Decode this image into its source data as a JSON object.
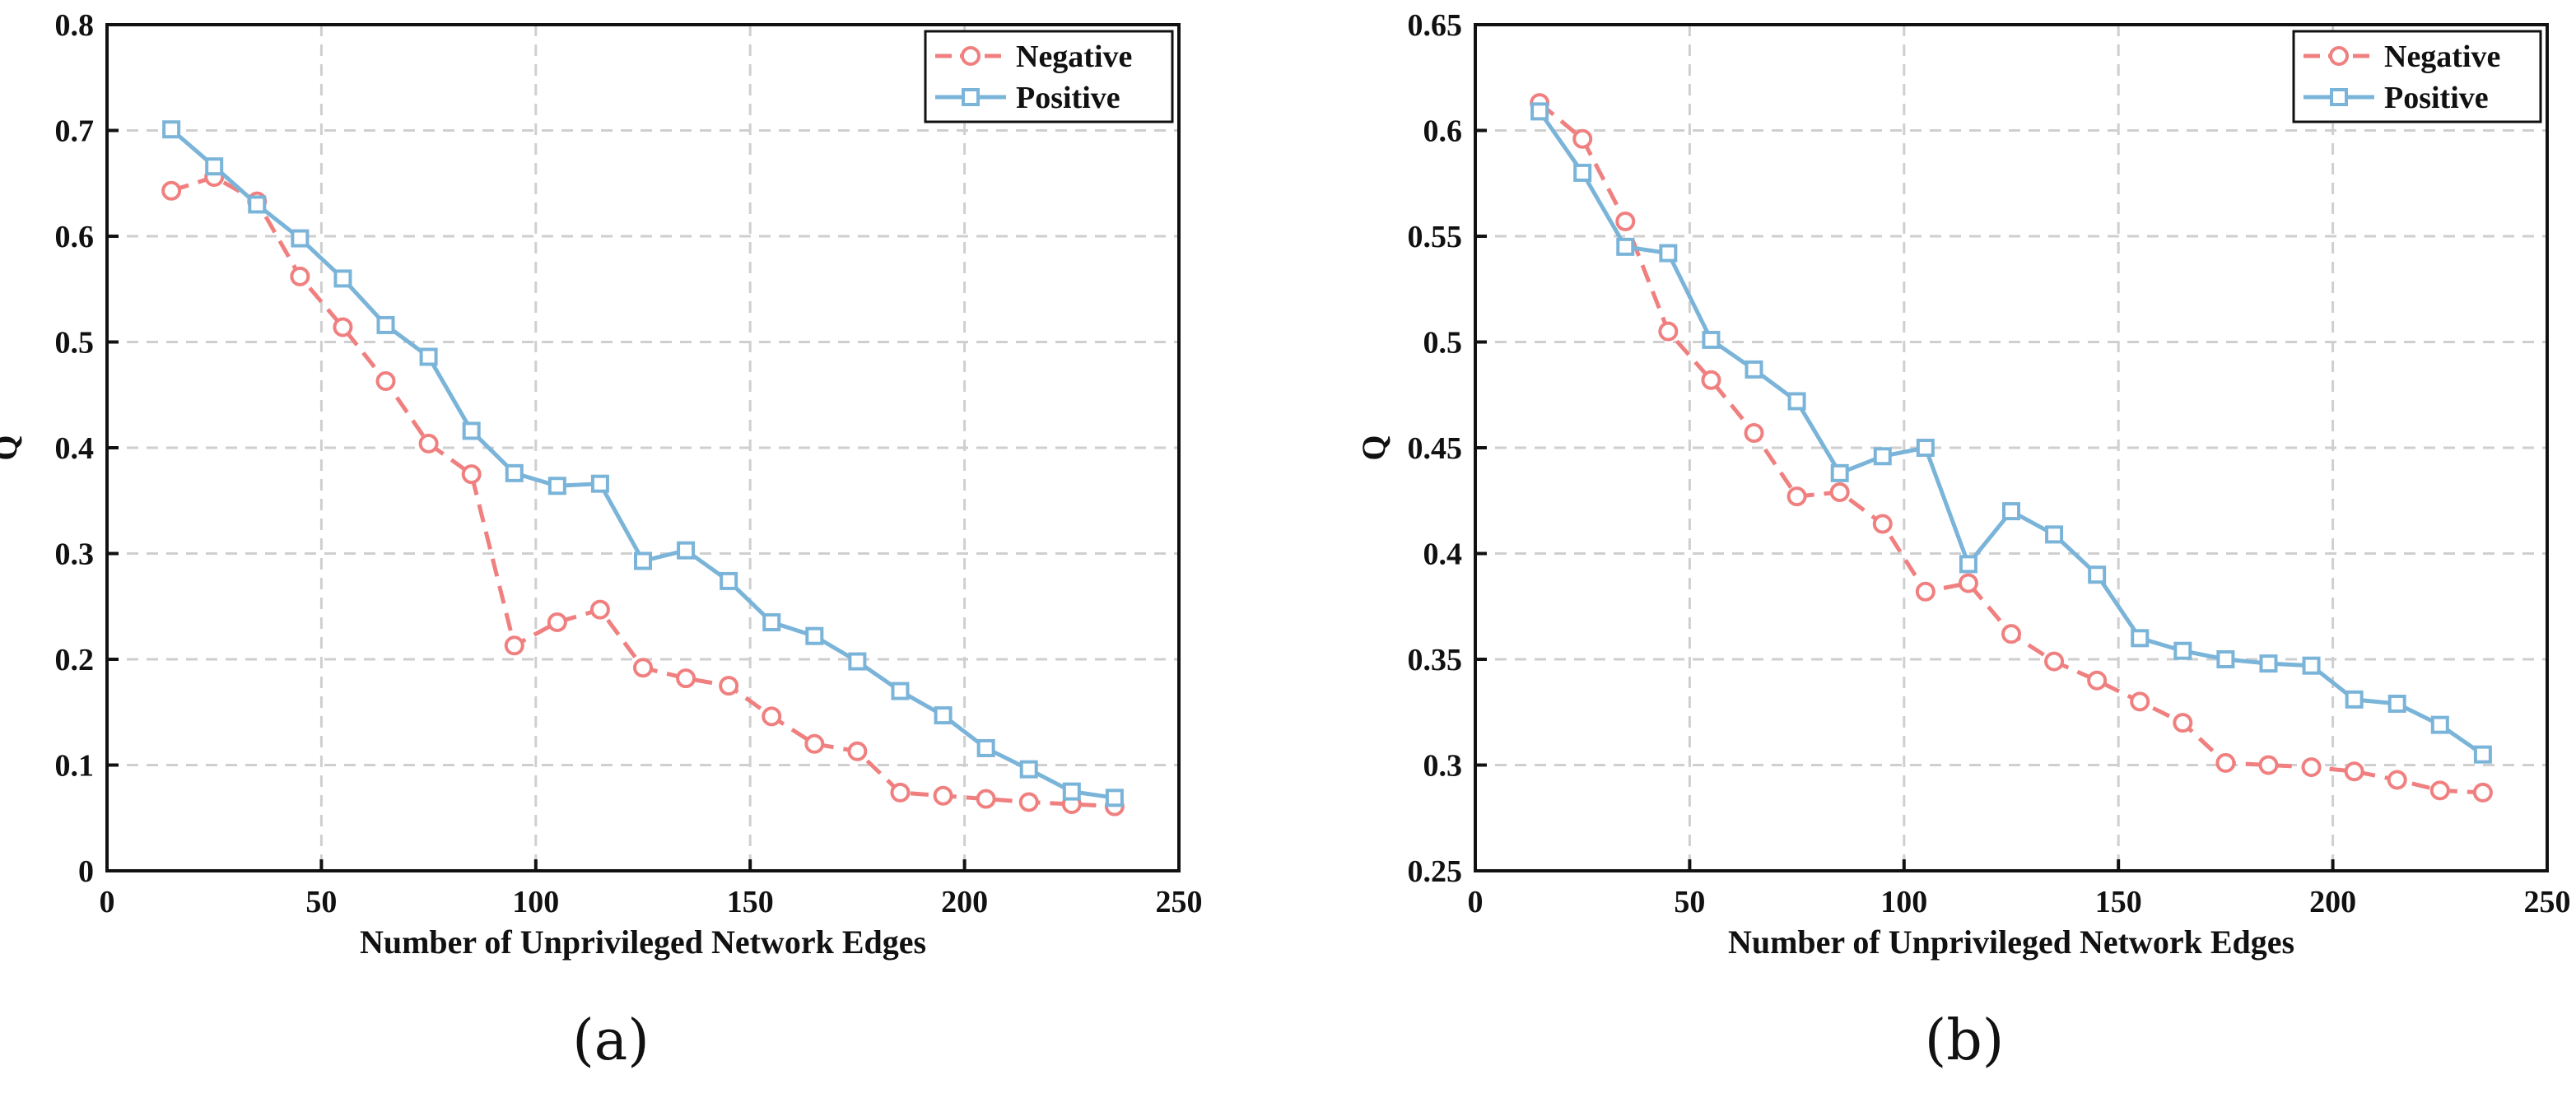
{
  "chart_data": [
    {
      "panel": "(a)",
      "type": "line",
      "xlabel": "Number of Unprivileged Network Edges",
      "ylabel": "Q",
      "xlim": [
        0,
        250
      ],
      "ylim": [
        0,
        0.8
      ],
      "xticks": [
        0,
        50,
        100,
        150,
        200,
        250
      ],
      "yticks": [
        0,
        0.1,
        0.2,
        0.3,
        0.4,
        0.5,
        0.6,
        0.7,
        0.8
      ],
      "xtick_labels": [
        "0",
        "50",
        "100",
        "150",
        "200",
        "250"
      ],
      "ytick_labels": [
        "0",
        "0.1",
        "0.2",
        "0.3",
        "0.4",
        "0.5",
        "0.6",
        "0.7",
        "0.8"
      ],
      "grid": true,
      "legend_position": "top-right",
      "x": [
        15,
        25,
        35,
        45,
        55,
        65,
        75,
        85,
        95,
        105,
        115,
        125,
        135,
        145,
        155,
        165,
        175,
        185,
        195,
        205,
        215,
        225,
        235
      ],
      "series": [
        {
          "name": "Negative",
          "color": "#f08080",
          "style": "dashed",
          "marker": "circle",
          "values": [
            0.643,
            0.656,
            0.633,
            0.562,
            0.514,
            0.463,
            0.404,
            0.375,
            0.213,
            0.235,
            0.247,
            0.192,
            0.182,
            0.175,
            0.146,
            0.12,
            0.113,
            0.074,
            0.071,
            0.068,
            0.065,
            0.063,
            0.061
          ]
        },
        {
          "name": "Positive",
          "color": "#7ab4d9",
          "style": "solid",
          "marker": "square",
          "values": [
            0.701,
            0.666,
            0.63,
            0.598,
            0.56,
            0.516,
            0.486,
            0.416,
            0.376,
            0.364,
            0.366,
            0.293,
            0.303,
            0.274,
            0.235,
            0.222,
            0.198,
            0.17,
            0.147,
            0.116,
            0.096,
            0.075,
            0.069
          ]
        }
      ]
    },
    {
      "panel": "(b)",
      "type": "line",
      "xlabel": "Number of Unprivileged Network Edges",
      "ylabel": "Q",
      "xlim": [
        0,
        250
      ],
      "ylim": [
        0.25,
        0.65
      ],
      "xticks": [
        0,
        50,
        100,
        150,
        200,
        250
      ],
      "yticks": [
        0.25,
        0.3,
        0.35,
        0.4,
        0.45,
        0.5,
        0.55,
        0.6,
        0.65
      ],
      "xtick_labels": [
        "0",
        "50",
        "100",
        "150",
        "200",
        "250"
      ],
      "ytick_labels": [
        "0.25",
        "0.3",
        "0.35",
        "0.4",
        "0.45",
        "0.5",
        "0.55",
        "0.6",
        "0.65"
      ],
      "grid": true,
      "legend_position": "top-right",
      "x": [
        15,
        25,
        35,
        45,
        55,
        65,
        75,
        85,
        95,
        105,
        115,
        125,
        135,
        145,
        155,
        165,
        175,
        185,
        195,
        205,
        215,
        225,
        235
      ],
      "series": [
        {
          "name": "Negative",
          "color": "#f08080",
          "style": "dashed",
          "marker": "circle",
          "values": [
            0.613,
            0.596,
            0.557,
            0.505,
            0.482,
            0.457,
            0.427,
            0.429,
            0.414,
            0.382,
            0.386,
            0.362,
            0.349,
            0.34,
            0.33,
            0.32,
            0.301,
            0.3,
            0.299,
            0.297,
            0.293,
            0.288,
            0.287
          ]
        },
        {
          "name": "Positive",
          "color": "#7ab4d9",
          "style": "solid",
          "marker": "square",
          "values": [
            0.609,
            0.58,
            0.545,
            0.542,
            0.501,
            0.487,
            0.472,
            0.438,
            0.446,
            0.45,
            0.395,
            0.42,
            0.409,
            0.39,
            0.36,
            0.354,
            0.35,
            0.348,
            0.347,
            0.331,
            0.329,
            0.319,
            0.305
          ]
        }
      ]
    }
  ]
}
